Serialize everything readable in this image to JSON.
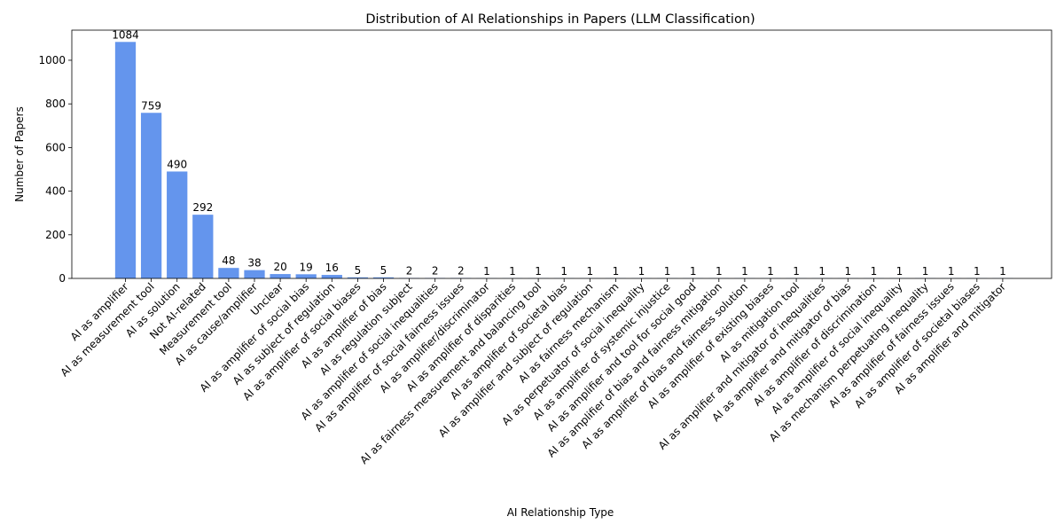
{
  "chart_data": {
    "type": "bar",
    "title": "Distribution of AI Relationships in Papers (LLM Classification)",
    "xlabel": "AI Relationship Type",
    "ylabel": "Number of Papers",
    "ylim": [
      0,
      1138
    ],
    "yticks": [
      0,
      200,
      400,
      600,
      800,
      1000
    ],
    "bar_color": "#6495ED",
    "grid": false,
    "legend": "none",
    "categories": [
      "AI as amplifier",
      "AI as measurement tool",
      "AI as solution",
      "Not AI-related",
      "Measurement tool",
      "AI as cause/amplifier",
      "Unclear",
      "AI as amplifier of social bias",
      "AI as subject of regulation",
      "AI as amplifier of social biases",
      "AI as amplifier of bias",
      "AI as regulation subject",
      "AI as amplifier of social inequalities",
      "AI as amplifier of social fairness issues",
      "AI as amplifier/discriminator",
      "AI as amplifier of disparities",
      "AI as fairness measurement and balancing tool",
      "AI as amplifier of societal bias",
      "AI as amplifier and subject of regulation",
      "AI as fairness mechanism",
      "AI as perpetuator of social inequality",
      "AI as amplifier of systemic injustice",
      "AI as amplifier and tool for social good",
      "AI as amplifier of bias and fairness mitigation",
      "AI as amplifier of bias and fairness solution",
      "AI as amplifier of existing biases",
      "AI as mitigation tool",
      "AI as amplifier and mitigator of inequalities",
      "AI as amplifier and mitigator of bias",
      "AI as amplifier of discrimination",
      "AI as amplifier of social inequality",
      "AI as mechanism perpetuating inequality",
      "AI as amplifier of fairness issues",
      "AI as amplifier of societal biases",
      "AI as amplifier and mitigator"
    ],
    "values": [
      1084,
      759,
      490,
      292,
      48,
      38,
      20,
      19,
      16,
      5,
      5,
      2,
      2,
      2,
      1,
      1,
      1,
      1,
      1,
      1,
      1,
      1,
      1,
      1,
      1,
      1,
      1,
      1,
      1,
      1,
      1,
      1,
      1,
      1,
      1
    ]
  }
}
